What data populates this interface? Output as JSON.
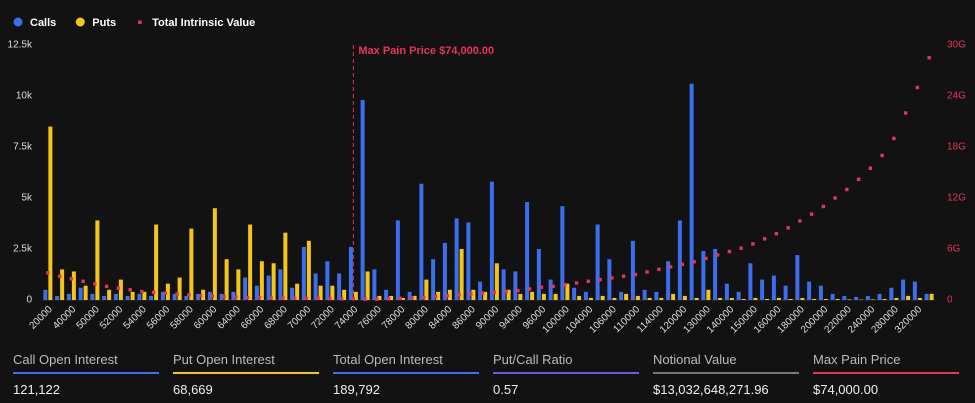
{
  "chart_data": {
    "type": "bar",
    "categories": [
      "20000",
      null,
      "40000",
      null,
      "50000",
      null,
      "52000",
      null,
      "54000",
      null,
      "56000",
      null,
      "58000",
      null,
      "60000",
      null,
      "64000",
      null,
      "66000",
      null,
      "68000",
      null,
      "70000",
      null,
      "72000",
      null,
      "74000",
      null,
      "76000",
      null,
      "78000",
      null,
      "80000",
      null,
      "84000",
      null,
      "86000",
      null,
      "90000",
      null,
      "94000",
      null,
      "96000",
      null,
      "100000",
      null,
      "104000",
      null,
      "106000",
      null,
      "110000",
      null,
      "114000",
      null,
      "120000",
      null,
      "130000",
      null,
      "140000",
      null,
      "150000",
      null,
      "160000",
      null,
      "180000",
      null,
      "200000",
      null,
      "220000",
      null,
      "240000",
      null,
      "280000",
      null,
      "320000",
      null
    ],
    "series": [
      {
        "name": "Calls",
        "color": "#3b6ff0",
        "values": [
          500,
          200,
          300,
          600,
          300,
          200,
          300,
          200,
          300,
          200,
          400,
          300,
          200,
          300,
          400,
          300,
          400,
          1100,
          700,
          1200,
          1500,
          600,
          2600,
          1300,
          1900,
          1300,
          2600,
          9800,
          1500,
          500,
          3900,
          400,
          5700,
          2000,
          2800,
          4000,
          3800,
          900,
          5800,
          1500,
          1400,
          4800,
          2500,
          1000,
          4600,
          600,
          400,
          3700,
          2000,
          400,
          2900,
          500,
          400,
          1900,
          3900,
          10600,
          2400,
          2500,
          800,
          400,
          1800,
          1000,
          1200,
          700,
          2200,
          900,
          700,
          300,
          200,
          150,
          200,
          300,
          600,
          1000,
          900,
          300
        ]
      },
      {
        "name": "Puts",
        "color": "#f5c518",
        "values": [
          8500,
          1500,
          1400,
          700,
          3900,
          500,
          1000,
          400,
          400,
          3700,
          800,
          1100,
          3500,
          500,
          4500,
          2000,
          1500,
          3700,
          1900,
          1800,
          3300,
          800,
          2900,
          700,
          700,
          500,
          400,
          1400,
          200,
          200,
          100,
          200,
          1000,
          400,
          500,
          2500,
          500,
          400,
          1800,
          500,
          300,
          400,
          300,
          300,
          800,
          200,
          100,
          200,
          100,
          300,
          200,
          100,
          100,
          300,
          200,
          100,
          500,
          100,
          100,
          50,
          100,
          50,
          100,
          50,
          100,
          50,
          50,
          50,
          30,
          20,
          30,
          50,
          100,
          200,
          100,
          300
        ]
      },
      {
        "name": "Total Intrinsic Value",
        "color": "#e8335a",
        "axis": "y2",
        "values": [
          3.2,
          2.8,
          2.5,
          2.2,
          1.9,
          1.6,
          1.4,
          1.2,
          1.0,
          0.9,
          0.8,
          0.7,
          0.6,
          0.5,
          0.45,
          0.4,
          0.35,
          0.3,
          0.3,
          0.25,
          0.25,
          0.2,
          0.2,
          0.2,
          0.15,
          0.15,
          0.15,
          0.1,
          0.1,
          0.15,
          0.2,
          0.25,
          0.3,
          0.4,
          0.5,
          0.6,
          0.7,
          0.8,
          0.9,
          1.0,
          1.1,
          1.3,
          1.5,
          1.6,
          1.8,
          2.0,
          2.2,
          2.4,
          2.6,
          2.8,
          3.0,
          3.3,
          3.6,
          3.9,
          4.2,
          4.5,
          4.9,
          5.3,
          5.7,
          6.1,
          6.6,
          7.2,
          7.8,
          8.5,
          9.3,
          10.1,
          11.0,
          12.0,
          13.0,
          14.2,
          15.5,
          17.0,
          19.0,
          22.0,
          25.0,
          28.5
        ]
      }
    ],
    "ylim": [
      0,
      12500
    ],
    "yticks": [
      0,
      {
        "value": 2500,
        "label": "2.5k"
      },
      {
        "value": 5000,
        "label": "5k"
      },
      {
        "value": 7500,
        "label": "7.5k"
      },
      {
        "value": 10000,
        "label": "10k"
      },
      {
        "value": 12500,
        "label": "12.5k"
      }
    ],
    "y2lim": [
      0,
      30
    ],
    "y2ticks": [
      0,
      {
        "value": 6,
        "label": "6G"
      },
      {
        "value": 12,
        "label": "12G"
      },
      {
        "value": 18,
        "label": "18G"
      },
      {
        "value": 24,
        "label": "24G"
      },
      {
        "value": 30,
        "label": "30G"
      }
    ],
    "annotation": {
      "text": "Max Pain Price $74,000.00",
      "x": "74000"
    }
  },
  "stats": [
    {
      "label": "Call Open Interest",
      "value": "121,122",
      "color": "#3b6ff0"
    },
    {
      "label": "Put Open Interest",
      "value": "68,669",
      "color": "#f5c518"
    },
    {
      "label": "Total Open Interest",
      "value": "189,792",
      "color": "#3b6ff0"
    },
    {
      "label": "Put/Call Ratio",
      "value": "0.57",
      "color": "#6b5bd6"
    },
    {
      "label": "Notional Value",
      "value": "$13,032,648,271.96",
      "color": "#777777"
    },
    {
      "label": "Max Pain Price",
      "value": "$74,000.00",
      "color": "#e8335a"
    }
  ]
}
